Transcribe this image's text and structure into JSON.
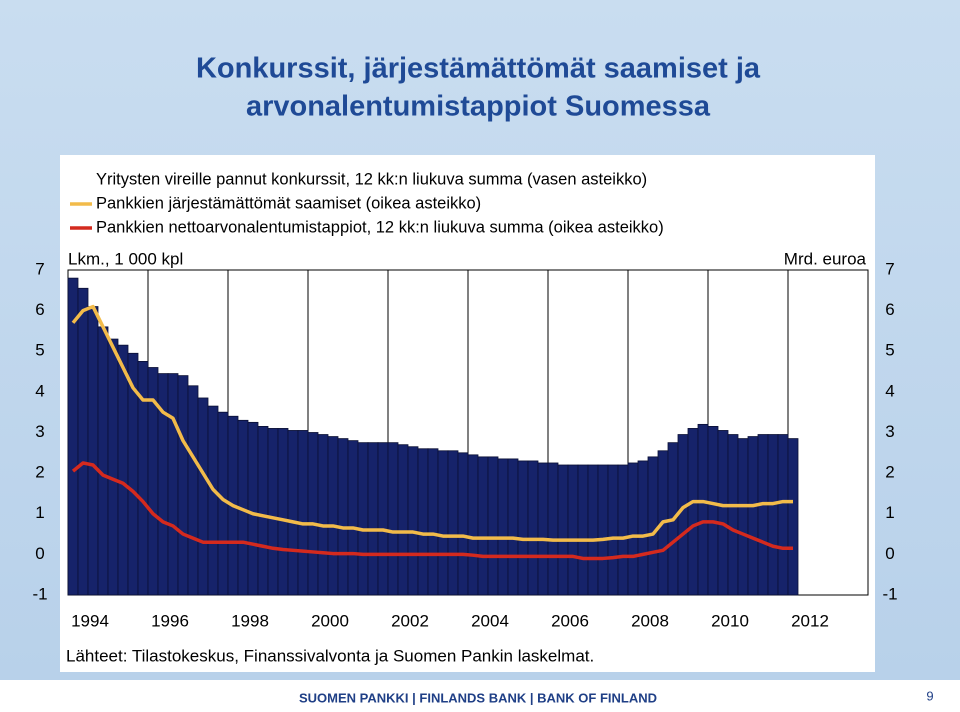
{
  "chart_data": {
    "type": "bar",
    "title": [
      "Konkurssit, järjestämättömät saamiset ja",
      "arvonalentumistappiot Suomessa"
    ],
    "y_label": "Lkm., 1 000 kpl",
    "y2_label": "Mrd. euroa",
    "source": "Lähteet: Tilastokeskus, Finanssivalvonta ja Suomen Pankin laskelmat.",
    "xlim": [
      1994,
      2014
    ],
    "xticks": [
      1994,
      1996,
      1998,
      2000,
      2002,
      2004,
      2006,
      2008,
      2010,
      2012
    ],
    "ylim": [
      -1,
      7
    ],
    "yticks": [
      -1,
      0,
      1,
      2,
      3,
      4,
      5,
      6,
      7
    ],
    "y2lim": [
      -1,
      7
    ],
    "y2ticks": [
      -1,
      0,
      1,
      2,
      3,
      4,
      5,
      6,
      7
    ],
    "grid": true,
    "x": [
      1994,
      1994.25,
      1994.5,
      1994.75,
      1995,
      1995.25,
      1995.5,
      1995.75,
      1996,
      1996.25,
      1996.5,
      1996.75,
      1997,
      1997.25,
      1997.5,
      1997.75,
      1998,
      1998.25,
      1998.5,
      1998.75,
      1999,
      1999.25,
      1999.5,
      1999.75,
      2000,
      2000.25,
      2000.5,
      2000.75,
      2001,
      2001.25,
      2001.5,
      2001.75,
      2002,
      2002.25,
      2002.5,
      2002.75,
      2003,
      2003.25,
      2003.5,
      2003.75,
      2004,
      2004.25,
      2004.5,
      2004.75,
      2005,
      2005.25,
      2005.5,
      2005.75,
      2006,
      2006.25,
      2006.5,
      2006.75,
      2007,
      2007.25,
      2007.5,
      2007.75,
      2008,
      2008.25,
      2008.5,
      2008.75,
      2009,
      2009.25,
      2009.5,
      2009.75,
      2010,
      2010.25,
      2010.5,
      2010.75,
      2011,
      2011.25,
      2011.5,
      2011.75,
      2012
    ],
    "series": [
      {
        "name": "Yritysten vireille pannut konkurssit, 12 kk:n liukuva summa (vasen asteikko)",
        "type": "bar",
        "color": "#16236a",
        "values": [
          6.8,
          6.55,
          6.1,
          5.6,
          5.3,
          5.15,
          4.95,
          4.75,
          4.6,
          4.45,
          4.45,
          4.4,
          4.15,
          3.85,
          3.65,
          3.5,
          3.4,
          3.3,
          3.25,
          3.15,
          3.1,
          3.1,
          3.05,
          3.05,
          3.0,
          2.95,
          2.9,
          2.85,
          2.8,
          2.75,
          2.75,
          2.75,
          2.75,
          2.7,
          2.65,
          2.6,
          2.6,
          2.55,
          2.55,
          2.5,
          2.45,
          2.4,
          2.4,
          2.35,
          2.35,
          2.3,
          2.3,
          2.25,
          2.25,
          2.2,
          2.2,
          2.2,
          2.2,
          2.2,
          2.2,
          2.2,
          2.25,
          2.3,
          2.4,
          2.55,
          2.75,
          2.95,
          3.1,
          3.2,
          3.15,
          3.05,
          2.95,
          2.85,
          2.9,
          2.95,
          2.95,
          2.95,
          2.85
        ]
      },
      {
        "name": "Pankkien järjestämättömät saamiset (oikea asteikko)",
        "type": "line",
        "axis": "y2",
        "color": "#f2bb4a",
        "values": [
          5.7,
          6.0,
          6.1,
          5.6,
          5.1,
          4.6,
          4.1,
          3.8,
          3.8,
          3.5,
          3.35,
          2.8,
          2.4,
          2.0,
          1.6,
          1.35,
          1.2,
          1.1,
          1.0,
          0.95,
          0.9,
          0.85,
          0.8,
          0.75,
          0.75,
          0.7,
          0.7,
          0.65,
          0.65,
          0.6,
          0.6,
          0.6,
          0.55,
          0.55,
          0.55,
          0.5,
          0.5,
          0.45,
          0.45,
          0.45,
          0.4,
          0.4,
          0.4,
          0.4,
          0.4,
          0.37,
          0.37,
          0.37,
          0.35,
          0.35,
          0.35,
          0.35,
          0.35,
          0.37,
          0.4,
          0.4,
          0.45,
          0.45,
          0.5,
          0.8,
          0.85,
          1.15,
          1.3,
          1.3,
          1.25,
          1.2,
          1.2,
          1.2,
          1.2,
          1.25,
          1.25,
          1.3,
          1.3
        ]
      },
      {
        "name": "Pankkien nettoarvonalentumistappiot, 12 kk:n liukuva summa (oikea asteikko)",
        "type": "line",
        "axis": "y2",
        "color": "#d42a1e",
        "values": [
          2.05,
          2.25,
          2.2,
          1.95,
          1.85,
          1.75,
          1.55,
          1.3,
          1.0,
          0.8,
          0.7,
          0.5,
          0.4,
          0.3,
          0.3,
          0.3,
          0.3,
          0.3,
          0.25,
          0.2,
          0.15,
          0.12,
          0.1,
          0.08,
          0.06,
          0.04,
          0.02,
          0.02,
          0.02,
          0.0,
          0.0,
          0.0,
          0.0,
          0.0,
          0.0,
          0.0,
          0.0,
          0.0,
          0.0,
          0.0,
          -0.02,
          -0.05,
          -0.05,
          -0.05,
          -0.05,
          -0.05,
          -0.05,
          -0.05,
          -0.05,
          -0.05,
          -0.05,
          -0.1,
          -0.1,
          -0.1,
          -0.08,
          -0.05,
          -0.05,
          0.0,
          0.05,
          0.1,
          0.3,
          0.5,
          0.7,
          0.8,
          0.8,
          0.75,
          0.6,
          0.5,
          0.4,
          0.3,
          0.2,
          0.15,
          0.15
        ]
      }
    ]
  },
  "footer": {
    "text": "SUOMEN PANKKI | FINLANDS BANK | BANK OF FINLAND",
    "page": 9
  }
}
